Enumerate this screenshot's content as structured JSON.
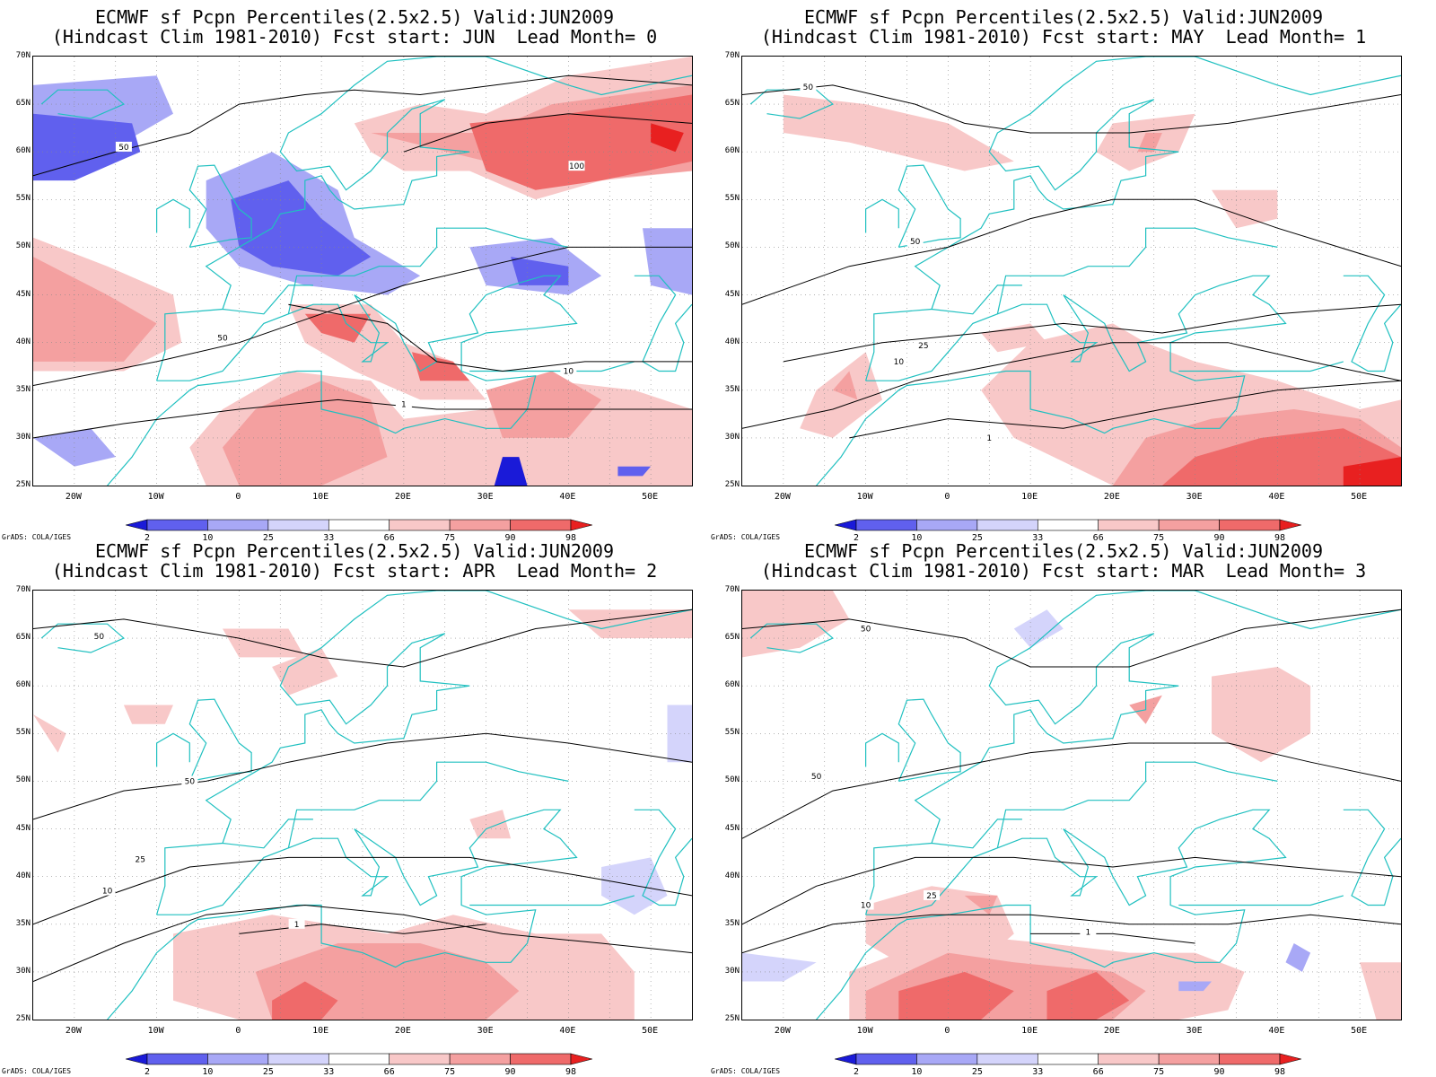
{
  "palette": {
    "blue_dark": "#1a1ad8",
    "blue_mid": "#6060ee",
    "blue_light": "#a8a8f6",
    "blue_pale": "#d4d4fb",
    "red_pale": "#f8c8c8",
    "red_light": "#f4a0a0",
    "red_mid": "#ef6a6a",
    "red_dark": "#e82020",
    "coast": "#20c0c0",
    "contour": "#000000"
  },
  "common": {
    "title_line1": "ECMWF sf Pcpn Percentiles(2.5x2.5) Valid:JUN2009",
    "grads_credit": "GrADS: COLA/IGES",
    "lat_labels": [
      "70N",
      "65N",
      "60N",
      "55N",
      "50N",
      "45N",
      "40N",
      "35N",
      "30N",
      "25N"
    ],
    "lon_labels": [
      "20W",
      "10W",
      "0",
      "10E",
      "20E",
      "30E",
      "40E",
      "50E"
    ],
    "colorbar_labels": [
      "2",
      "10",
      "25",
      "33",
      "66",
      "75",
      "90",
      "98"
    ]
  },
  "panels": [
    {
      "title_line2": "(Hindcast Clim 1981-2010) Fcst start: JUN  Lead Month= 0"
    },
    {
      "title_line2": "(Hindcast Clim 1981-2010) Fcst start: MAY  Lead Month= 1"
    },
    {
      "title_line2": "(Hindcast Clim 1981-2010) Fcst start: APR  Lead Month= 2"
    },
    {
      "title_line2": "(Hindcast Clim 1981-2010) Fcst start: MAR  Lead Month= 3"
    }
  ]
}
